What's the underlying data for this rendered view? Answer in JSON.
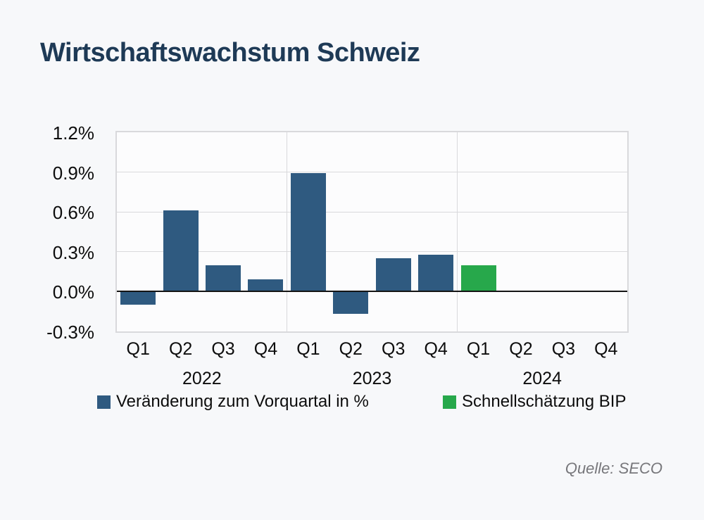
{
  "title": "Wirtschaftswachstum Schweiz",
  "source": "Quelle: SECO",
  "colors": {
    "background": "#F7F8FA",
    "plot_background": "#FCFCFD",
    "title_navy": "#1E3A56",
    "gridline": "#D9D9DC",
    "zero_line": "#141414",
    "axis_text": "#0D0D0D",
    "source_gray": "#77777B",
    "bar_blue": "#2F5A80",
    "bar_green": "#27A84B"
  },
  "chart_data": {
    "type": "bar",
    "title": "Wirtschaftswachstum Schweiz",
    "xlabel": "",
    "ylabel": "",
    "unit": "%",
    "ylim": [
      -0.3,
      1.2
    ],
    "grid": true,
    "legend_position": "bottom",
    "ytick_values": [
      1.2,
      0.9,
      0.6,
      0.3,
      0.0,
      -0.3
    ],
    "ytick_labels": [
      "1.2%",
      "0.9%",
      "0.6%",
      "0.3%",
      "0.0%",
      "-0.3%"
    ],
    "quarter_labels": [
      "Q1",
      "Q2",
      "Q3",
      "Q4",
      "Q1",
      "Q2",
      "Q3",
      "Q4",
      "Q1",
      "Q2",
      "Q3",
      "Q4"
    ],
    "year_labels": [
      "2022",
      "2023",
      "2024"
    ],
    "series": [
      {
        "name": "Veränderung zum Vorquartal in %",
        "color": "#2F5A80",
        "values": [
          -0.1,
          0.61,
          0.2,
          0.09,
          0.89,
          -0.17,
          0.25,
          0.28,
          null,
          null,
          null,
          null
        ]
      },
      {
        "name": "Schnellschätzung BIP",
        "color": "#27A84B",
        "values": [
          null,
          null,
          null,
          null,
          null,
          null,
          null,
          null,
          0.2,
          null,
          null,
          null
        ]
      }
    ]
  }
}
